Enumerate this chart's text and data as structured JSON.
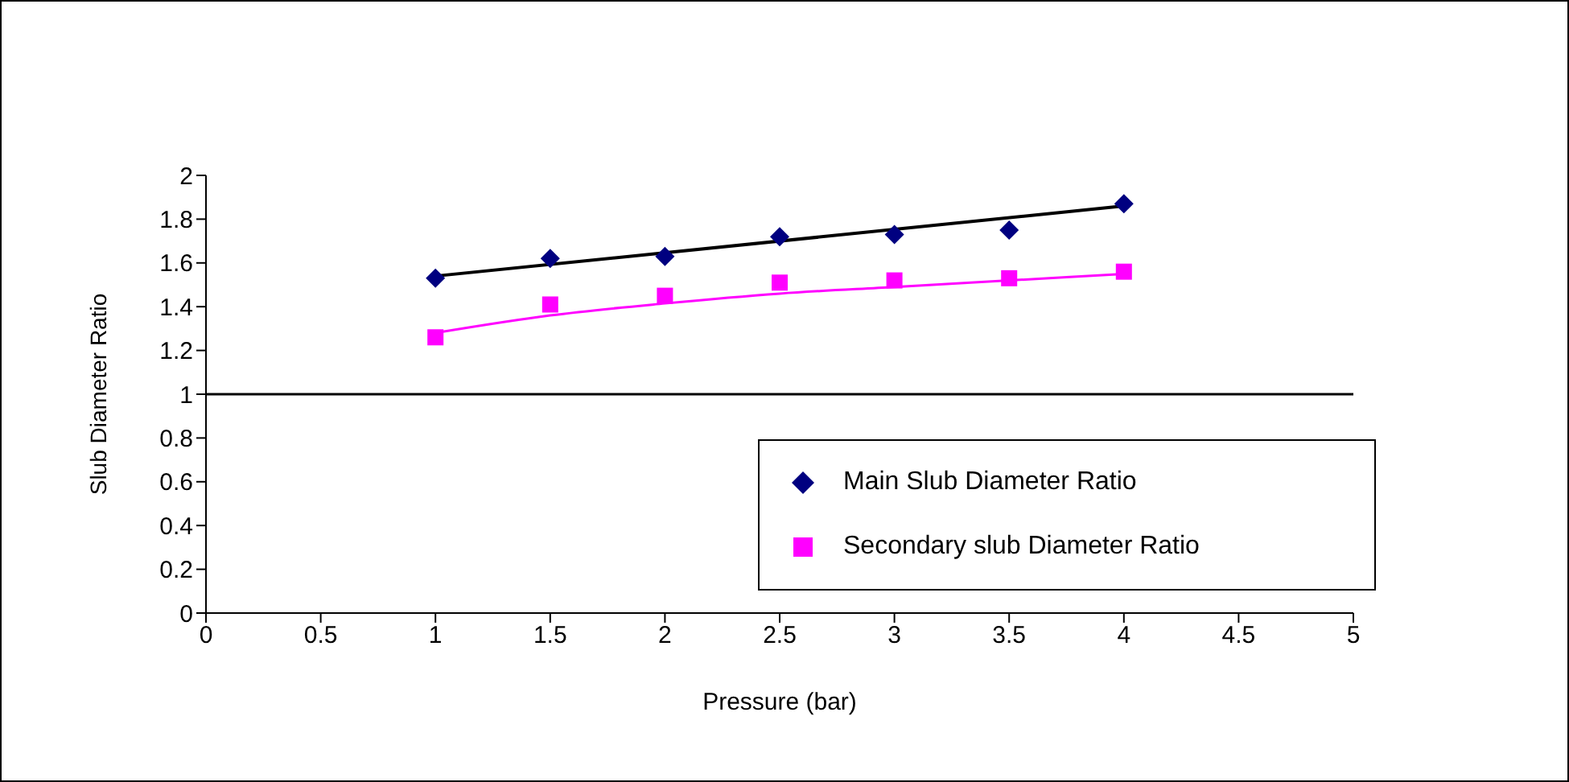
{
  "chart_data": {
    "type": "scatter",
    "xlabel": "Pressure (bar)",
    "ylabel": "Slub Diameter Ratio",
    "x": [
      1,
      1.5,
      2,
      2.5,
      3,
      3.5,
      4
    ],
    "series": [
      {
        "name": "Main Slub Diameter Ratio",
        "color": "#000080",
        "marker": "diamond",
        "values": [
          1.53,
          1.62,
          1.63,
          1.72,
          1.73,
          1.75,
          1.87
        ]
      },
      {
        "name": "Secondary slub Diameter Ratio",
        "color": "#ff00ff",
        "marker": "square",
        "values": [
          1.26,
          1.41,
          1.45,
          1.51,
          1.52,
          1.53,
          1.56
        ]
      },
      {
        "type": "line",
        "color": "#000000",
        "x": [
          1,
          4
        ],
        "values": [
          1.54,
          1.86
        ]
      },
      {
        "type": "line",
        "color": "#ff00ff",
        "x": [
          1,
          1.5,
          2,
          2.5,
          3,
          3.5,
          4
        ],
        "values": [
          1.28,
          1.36,
          1.415,
          1.46,
          1.49,
          1.52,
          1.55
        ]
      }
    ],
    "xlim": [
      0,
      5
    ],
    "xticks": [
      0,
      0.5,
      1,
      1.5,
      2,
      2.5,
      3,
      3.5,
      4,
      4.5,
      5
    ],
    "ylim": [
      0,
      2
    ],
    "yticks": [
      0,
      0.2,
      0.4,
      0.6,
      0.8,
      1,
      1.2,
      1.4,
      1.6,
      1.8,
      2
    ],
    "ref_lines": [
      {
        "axis": "y",
        "value": 1,
        "color": "#000000"
      }
    ],
    "legend": "right"
  }
}
